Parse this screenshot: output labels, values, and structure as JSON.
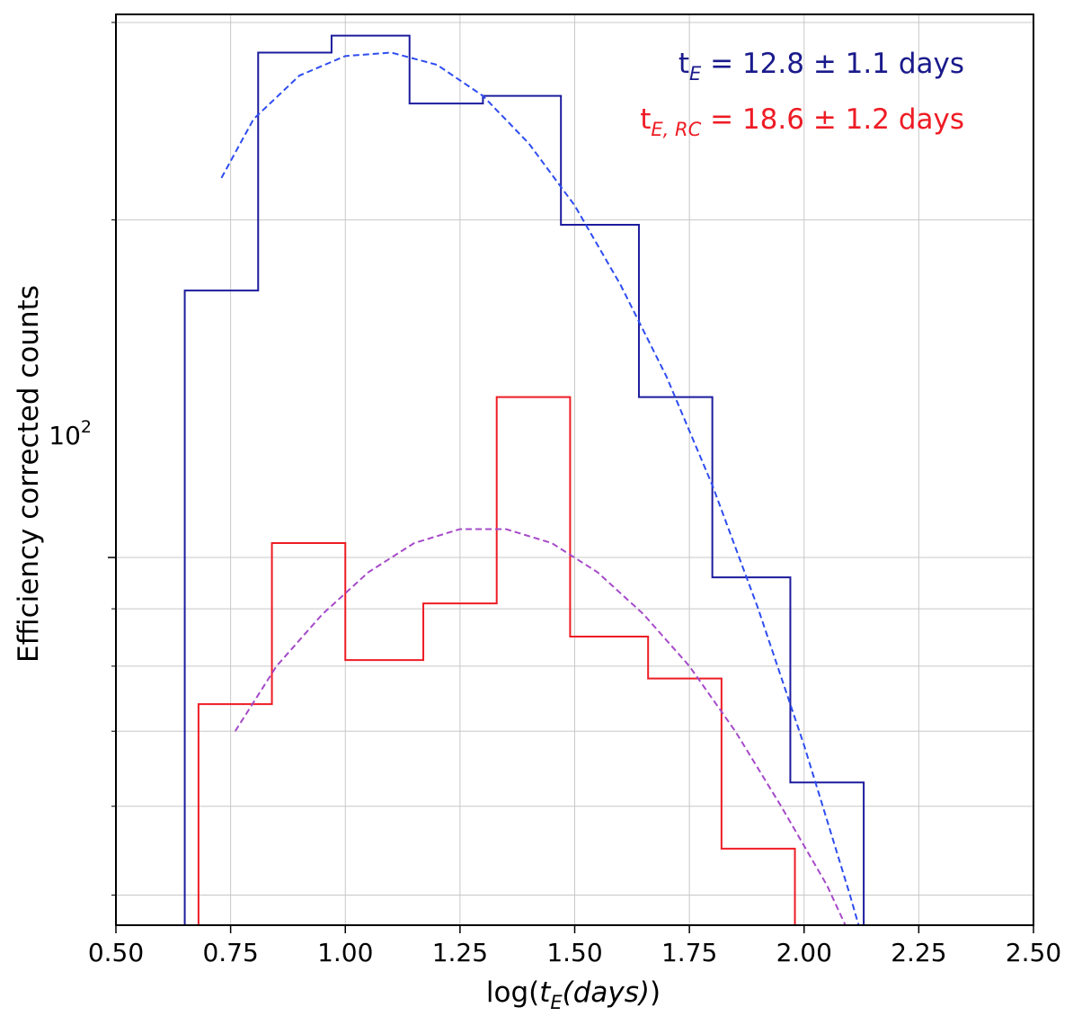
{
  "chart_data": {
    "type": "histogram",
    "xlabel_prefix": "log(",
    "xlabel_var": "t",
    "xlabel_sub": "E",
    "xlabel_inner": "(days)",
    "xlabel_suffix": ")",
    "ylabel": "Efficiency corrected counts",
    "xlim": [
      0.5,
      2.5
    ],
    "ylim_log": [
      47,
      305
    ],
    "log_y": true,
    "grid": true,
    "x_ticks": [
      "0.50",
      "0.75",
      "1.00",
      "1.25",
      "1.50",
      "1.75",
      "2.00",
      "2.25",
      "2.50"
    ],
    "y_major_tick_label": {
      "base": "10",
      "exponent": "2"
    },
    "annotations": [
      {
        "main": "t",
        "sub": "E",
        "rest": " = 12.8 ± 1.1 days",
        "color": "#1a1a8c"
      },
      {
        "main": "t",
        "sub": "E, RC",
        "rest": " = 18.6 ± 1.2 days",
        "color": "#ee1c25"
      }
    ],
    "series": [
      {
        "kind": "step-histogram",
        "color": "#1c1c9e",
        "edges": [
          0.65,
          0.81,
          0.97,
          1.14,
          1.3,
          1.47,
          1.64,
          1.8,
          1.97,
          2.13
        ],
        "values": [
          173,
          282,
          292,
          254,
          258,
          198,
          139,
          96,
          63,
          47
        ]
      },
      {
        "kind": "step-histogram",
        "color": "#ee1c25",
        "edges": [
          0.68,
          0.84,
          1.0,
          1.17,
          1.33,
          1.49,
          1.66,
          1.82,
          1.98
        ],
        "values": [
          74,
          103,
          81,
          91,
          139,
          85,
          78,
          55,
          47
        ]
      },
      {
        "kind": "fit-curve",
        "style": "dashed",
        "color": "#2e4cf0",
        "x": [
          0.73,
          0.8,
          0.9,
          1.0,
          1.1,
          1.2,
          1.3,
          1.4,
          1.5,
          1.6,
          1.7,
          1.8,
          1.9,
          2.0,
          2.1,
          2.2
        ],
        "y": [
          218,
          246,
          269,
          280,
          282,
          275,
          258,
          234,
          206,
          175,
          145,
          116,
          90,
          68,
          50,
          36
        ]
      },
      {
        "kind": "fit-curve",
        "style": "dashed",
        "color": "#a64ac9",
        "x": [
          0.76,
          0.85,
          0.95,
          1.05,
          1.15,
          1.25,
          1.35,
          1.45,
          1.55,
          1.65,
          1.75,
          1.85,
          1.95,
          2.05,
          2.09
        ],
        "y": [
          70,
          80,
          89,
          97,
          103,
          106,
          106,
          103,
          97,
          89,
          80,
          70,
          60,
          51,
          47
        ]
      }
    ]
  }
}
